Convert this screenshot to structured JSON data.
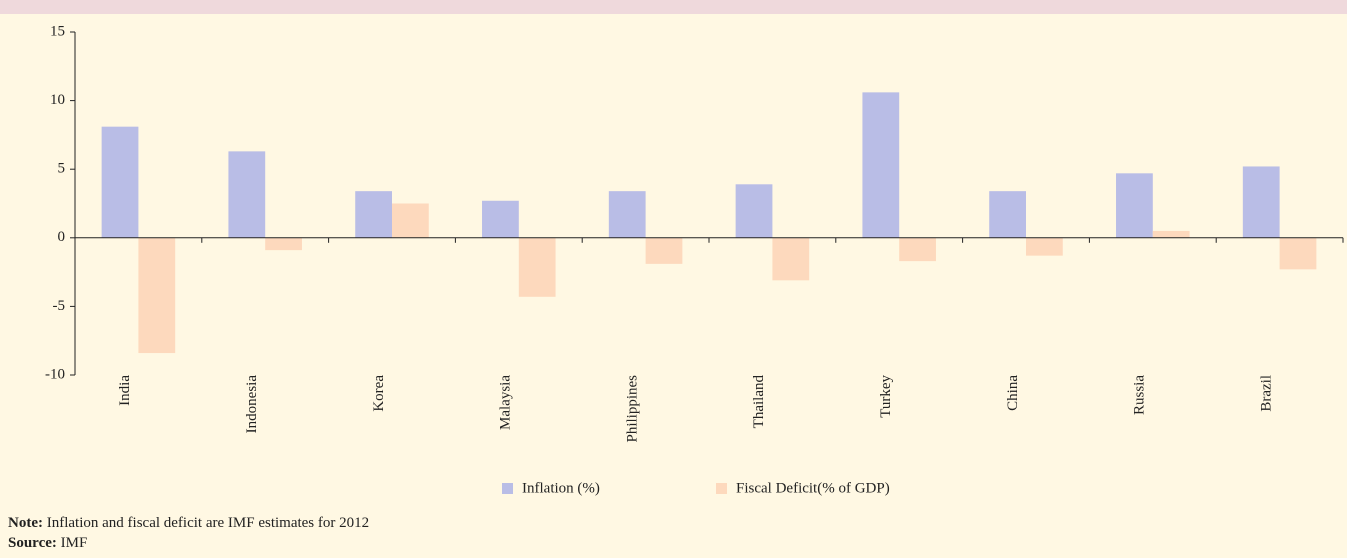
{
  "chart_data": {
    "type": "bar",
    "categories": [
      "India",
      "Indonesia",
      "Korea",
      "Malaysia",
      "Philippines",
      "Thailand",
      "Turkey",
      "China",
      "Russia",
      "Brazil"
    ],
    "series": [
      {
        "name": "Inflation (%)",
        "color": "#b9bde6",
        "values": [
          8.1,
          6.3,
          3.4,
          2.7,
          3.4,
          3.9,
          10.6,
          3.4,
          4.7,
          5.2
        ]
      },
      {
        "name": "Fiscal Deficit(% of GDP)",
        "color": "#fdd9bd",
        "values": [
          -8.4,
          -0.9,
          2.5,
          -4.3,
          -1.9,
          -3.1,
          -1.7,
          -1.3,
          0.5,
          -2.3
        ]
      }
    ],
    "ylim": [
      -10,
      15
    ],
    "yticks": [
      -10,
      -5,
      0,
      5,
      10,
      15
    ],
    "grid": false,
    "legend": "bottom"
  },
  "notes": [
    {
      "label": "Note:",
      "text": "Inflation and fiscal deficit are IMF estimates for 2012"
    },
    {
      "label": "Source:",
      "text": "IMF"
    }
  ]
}
